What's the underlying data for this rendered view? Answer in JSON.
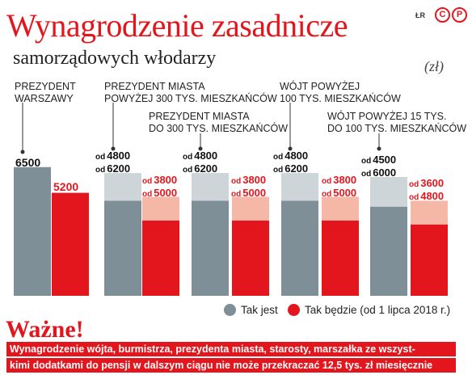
{
  "header": {
    "title": "Wynagrodzenie zasadnicze",
    "subtitle": "samorządowych włodarzy",
    "unit": "(zł)",
    "credit": "ŁR",
    "logo": "CP"
  },
  "colors": {
    "grey_current": "#7f8f97",
    "grey_light": "#cdd5d9",
    "red_new": "#e3161d",
    "red_light": "#f6b8a6"
  },
  "chart_data": {
    "type": "bar",
    "categories": [
      "PREZYDENT\nWARSZAWY",
      "PREZYDENT MIASTA\nPOWYŻEJ 300 TYS. MIESZKAŃCÓW",
      "PREZYDENT MIASTA\nDO 300 TYS. MIESZKAŃCÓW",
      "WÓJT POWYŻEJ\n100 TYS. MIESZKAŃCÓW",
      "WÓJT POWYŻEJ 15 TYS.\nDO 100 TYS. MIESZKAŃCÓW"
    ],
    "series": [
      {
        "name": "Tak jest",
        "min": [
          6500,
          4800,
          4800,
          4800,
          4500
        ],
        "max": [
          6500,
          6200,
          6200,
          6200,
          6000
        ]
      },
      {
        "name": "Tak będzie (od 1 lipca 2018 r.)",
        "min": [
          5200,
          3800,
          3800,
          3800,
          3600
        ],
        "max": [
          5200,
          5000,
          5000,
          5000,
          4800
        ]
      }
    ],
    "labels": {
      "current": [
        {
          "single": "6500"
        },
        {
          "lo_prefix": "od",
          "lo": "4800",
          "hi_prefix": "od",
          "hi": "6200"
        },
        {
          "lo_prefix": "od",
          "lo": "4800",
          "hi_prefix": "od",
          "hi": "6200"
        },
        {
          "lo_prefix": "od",
          "lo": "4800",
          "hi_prefix": "od",
          "hi": "6200"
        },
        {
          "lo_prefix": "od",
          "lo": "4500",
          "hi_prefix": "od",
          "hi": "6000"
        }
      ],
      "new": [
        {
          "single": "5200"
        },
        {
          "lo_prefix": "od",
          "lo": "3800",
          "hi_prefix": "od",
          "hi": "5000"
        },
        {
          "lo_prefix": "od",
          "lo": "3800",
          "hi_prefix": "od",
          "hi": "5000"
        },
        {
          "lo_prefix": "od",
          "lo": "3800",
          "hi_prefix": "od",
          "hi": "5000"
        },
        {
          "lo_prefix": "od",
          "lo": "3600",
          "hi_prefix": "od",
          "hi": "4800"
        }
      ]
    },
    "legend_position": "bottom-right",
    "grid": false
  },
  "legend": {
    "current_label": "Tak jest",
    "new_label": "Tak będzie (od 1 lipca 2018 r.)"
  },
  "notice": {
    "heading": "Ważne!",
    "line1": "Wynagrodzenie wójta, burmistrza, prezydenta miasta, starosty, marszałka ze wszyst-",
    "line2": "kimi dodatkami do pensji w dalszym ciągu nie może przekraczać 12,5 tys. zł miesięcznie"
  }
}
